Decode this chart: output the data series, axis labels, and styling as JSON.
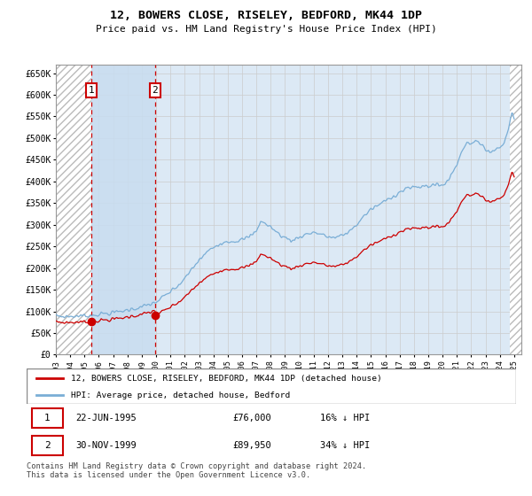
{
  "title": "12, BOWERS CLOSE, RISELEY, BEDFORD, MK44 1DP",
  "subtitle": "Price paid vs. HM Land Registry's House Price Index (HPI)",
  "ylabel_ticks": [
    "£0",
    "£50K",
    "£100K",
    "£150K",
    "£200K",
    "£250K",
    "£300K",
    "£350K",
    "£400K",
    "£450K",
    "£500K",
    "£550K",
    "£600K",
    "£650K"
  ],
  "ytick_values": [
    0,
    50000,
    100000,
    150000,
    200000,
    250000,
    300000,
    350000,
    400000,
    450000,
    500000,
    550000,
    600000,
    650000
  ],
  "xlim_start": 1993.0,
  "xlim_end": 2025.5,
  "ylim_min": 0,
  "ylim_max": 650000,
  "sale1_date": 1995.47,
  "sale1_price": 76000,
  "sale1_label": "1",
  "sale2_date": 1999.92,
  "sale2_price": 89950,
  "sale2_label": "2",
  "hpi_color": "#7aaed6",
  "price_color": "#cc0000",
  "dashed_line_color": "#cc0000",
  "grid_color": "#cccccc",
  "legend_line1": "12, BOWERS CLOSE, RISELEY, BEDFORD, MK44 1DP (detached house)",
  "legend_line2": "HPI: Average price, detached house, Bedford",
  "table_row1": [
    "1",
    "22-JUN-1995",
    "£76,000",
    "16% ↓ HPI"
  ],
  "table_row2": [
    "2",
    "30-NOV-1999",
    "£89,950",
    "34% ↓ HPI"
  ],
  "footnote": "Contains HM Land Registry data © Crown copyright and database right 2024.\nThis data is licensed under the Open Government Licence v3.0.",
  "font_family": "monospace",
  "chart_bg": "#dce9f5",
  "hatch_bg": "white",
  "hatch_color": "#bbbbbb",
  "mid_shade": "#c8ddf0"
}
